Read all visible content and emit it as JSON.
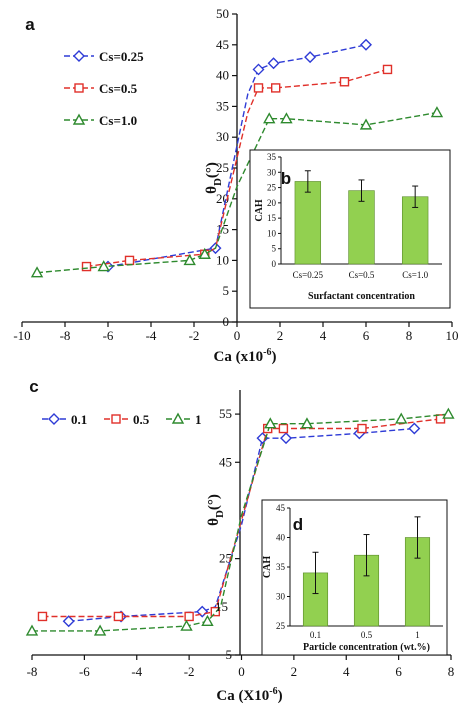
{
  "chart_data": [
    {
      "panel_label": "a",
      "type": "line",
      "xlabel": "Ca (x10",
      "xlabel_sup": "-6",
      "xlabel_tail": ")",
      "ylabel": "θ",
      "ylabel_sub": "D",
      "ylabel_tail": "(°)",
      "xlim": [
        -10,
        10
      ],
      "ylim": [
        0,
        50
      ],
      "xticks": [
        -10,
        -8,
        -6,
        -4,
        -2,
        0,
        2,
        4,
        6,
        8,
        10
      ],
      "yticks": [
        0,
        5,
        10,
        15,
        20,
        25,
        30,
        35,
        40,
        45,
        50
      ],
      "legend_position": "top-left",
      "series": [
        {
          "name": "Cs=0.25",
          "color": "#2e3bd6",
          "marker": "diamond",
          "points": [
            [
              -6,
              9
            ],
            [
              -1,
              12
            ],
            [
              1,
              41
            ],
            [
              1.7,
              42
            ],
            [
              3.4,
              43
            ],
            [
              6,
              45
            ]
          ],
          "curve": [
            [
              -6,
              9
            ],
            [
              -1,
              12
            ],
            [
              0.5,
              37
            ],
            [
              1,
              41
            ],
            [
              1.7,
              42
            ],
            [
              3.4,
              43
            ],
            [
              6,
              45
            ]
          ]
        },
        {
          "name": "Cs=0.5",
          "color": "#e0302a",
          "marker": "square",
          "points": [
            [
              -7,
              9
            ],
            [
              -5,
              10
            ],
            [
              -1.5,
              11
            ],
            [
              1,
              38
            ],
            [
              1.8,
              38
            ],
            [
              5,
              39
            ],
            [
              7,
              41
            ]
          ],
          "curve": [
            [
              -7,
              9
            ],
            [
              -5,
              10
            ],
            [
              -1.5,
              11
            ],
            [
              -1,
              12
            ],
            [
              0.5,
              34
            ],
            [
              1,
              38
            ],
            [
              1.8,
              38
            ],
            [
              5,
              39
            ],
            [
              7,
              41
            ]
          ]
        },
        {
          "name": "Cs=1.0",
          "color": "#2e8a2e",
          "marker": "triangle",
          "points": [
            [
              -9.3,
              8
            ],
            [
              -6.2,
              9
            ],
            [
              -2.2,
              10
            ],
            [
              -1.5,
              11
            ],
            [
              1.5,
              33
            ],
            [
              2.3,
              33
            ],
            [
              6,
              32
            ],
            [
              9.3,
              34
            ]
          ],
          "curve": [
            [
              -9.3,
              8
            ],
            [
              -6.2,
              9
            ],
            [
              -2.2,
              10
            ],
            [
              -1.5,
              11
            ],
            [
              -1,
              12
            ],
            [
              0,
              22
            ],
            [
              1.5,
              33
            ],
            [
              2.3,
              33
            ],
            [
              6,
              32
            ],
            [
              9.3,
              34
            ]
          ]
        }
      ],
      "inset": {
        "panel_label": "b",
        "type": "bar",
        "categories": [
          "Cs=0.25",
          "Cs=0.5",
          "Cs=1.0"
        ],
        "values": [
          27,
          24,
          22
        ],
        "errors": [
          3.5,
          3.5,
          3.5
        ],
        "ylabel": "CAH",
        "xlabel": "Surfactant concentration",
        "ylim": [
          0,
          35
        ],
        "yticks": [
          0,
          5,
          10,
          15,
          20,
          25,
          30,
          35
        ],
        "bar_color": "#92d050"
      }
    },
    {
      "panel_label": "c",
      "type": "line",
      "xlabel": "Ca (X10",
      "xlabel_sup": "-6",
      "xlabel_tail": ")",
      "ylabel": "θ",
      "ylabel_sub": "D",
      "ylabel_tail": "(°)",
      "xlim": [
        -8,
        8
      ],
      "ylim": [
        5,
        60
      ],
      "xticks": [
        -8,
        -6,
        -4,
        -2,
        0,
        2,
        4,
        6,
        8
      ],
      "yticks": [
        5,
        25,
        45,
        55
      ],
      "yticks_clipped": [
        15
      ],
      "legend_position": "top-left",
      "series": [
        {
          "name": "0.1",
          "color": "#2e3bd6",
          "marker": "diamond",
          "points": [
            [
              -6.6,
              12
            ],
            [
              -4.6,
              13
            ],
            [
              -1.5,
              14
            ],
            [
              0.8,
              50
            ],
            [
              1.7,
              50
            ],
            [
              4.5,
              51
            ],
            [
              6.6,
              52
            ]
          ],
          "curve": [
            [
              -6.6,
              12
            ],
            [
              -4.6,
              13
            ],
            [
              -1.5,
              14
            ],
            [
              -1,
              15
            ],
            [
              0,
              32
            ],
            [
              0.8,
              50
            ],
            [
              1.7,
              50
            ],
            [
              4.5,
              51
            ],
            [
              6.6,
              52
            ]
          ]
        },
        {
          "name": "0.5",
          "color": "#e0302a",
          "marker": "square",
          "points": [
            [
              -7.6,
              13
            ],
            [
              -4.7,
              13
            ],
            [
              -2,
              13
            ],
            [
              -1,
              14
            ],
            [
              1,
              52
            ],
            [
              1.6,
              52
            ],
            [
              4.6,
              52
            ],
            [
              7.6,
              54
            ]
          ],
          "curve": [
            [
              -7.6,
              13
            ],
            [
              -4.7,
              13
            ],
            [
              -2,
              13
            ],
            [
              -1,
              14
            ],
            [
              0,
              33
            ],
            [
              1,
              52
            ],
            [
              1.6,
              52
            ],
            [
              4.6,
              52
            ],
            [
              7.6,
              54
            ]
          ]
        },
        {
          "name": "1",
          "color": "#2e8a2e",
          "marker": "triangle",
          "points": [
            [
              -8,
              10
            ],
            [
              -5.4,
              10
            ],
            [
              -2.1,
              11
            ],
            [
              -1.3,
              12
            ],
            [
              1.1,
              53
            ],
            [
              2.5,
              53
            ],
            [
              6.1,
              54
            ],
            [
              7.9,
              55
            ]
          ],
          "curve": [
            [
              -8,
              10
            ],
            [
              -5.4,
              10
            ],
            [
              -2.1,
              11
            ],
            [
              -1.3,
              12
            ],
            [
              -0.8,
              15
            ],
            [
              0,
              34
            ],
            [
              1.1,
              53
            ],
            [
              2.5,
              53
            ],
            [
              6.1,
              54
            ],
            [
              7.9,
              55
            ]
          ]
        }
      ],
      "inset": {
        "panel_label": "d",
        "type": "bar",
        "categories": [
          "0.1",
          "0.5",
          "1"
        ],
        "values": [
          34,
          37,
          40
        ],
        "errors": [
          3.5,
          3.5,
          3.5
        ],
        "ylabel": "CAH",
        "xlabel": "Particle concentration (wt.%)",
        "ylim": [
          25,
          45
        ],
        "yticks": [
          25,
          30,
          35,
          40,
          45
        ],
        "bar_color": "#92d050"
      }
    }
  ]
}
